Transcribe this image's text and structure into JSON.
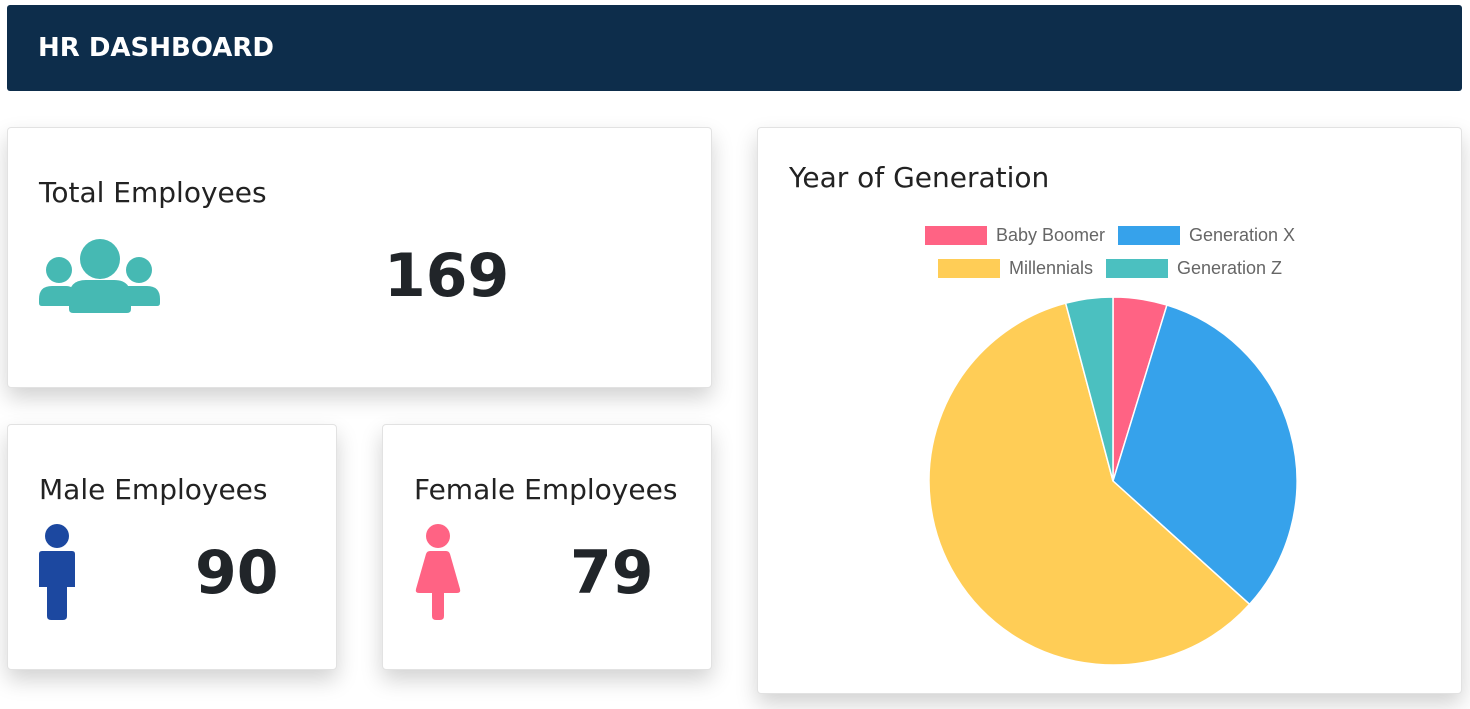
{
  "header": {
    "title": "HR DASHBOARD"
  },
  "total": {
    "title": "Total Employees",
    "value": "169",
    "icon": "users-icon",
    "icon_color": "#46b9b3"
  },
  "male": {
    "title": "Male Employees",
    "value": "90",
    "icon": "male-icon",
    "icon_color": "#1c48a0"
  },
  "female": {
    "title": "Female Employees",
    "value": "79",
    "icon": "female-icon",
    "icon_color": "#ff6384"
  },
  "generation": {
    "title": "Year of Generation"
  },
  "chart_data": {
    "type": "pie",
    "title": "Year of Generation",
    "categories": [
      "Baby Boomer",
      "Generation X",
      "Millennials",
      "Generation Z"
    ],
    "values": [
      8,
      54,
      100,
      7
    ],
    "colors": [
      "#ff6384",
      "#36a2eb",
      "#ffcd56",
      "#4bc0c0"
    ],
    "legend": "top"
  }
}
